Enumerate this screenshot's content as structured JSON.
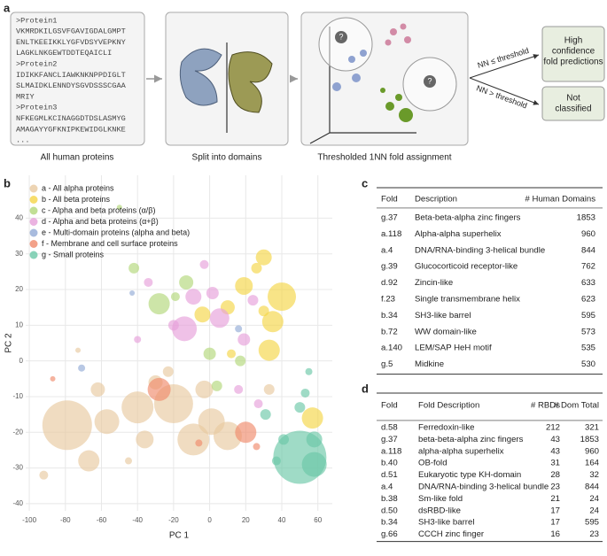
{
  "panel_labels": [
    "a",
    "b",
    "c",
    "d"
  ],
  "panel_a": {
    "sequences": [
      ">Protein1",
      "VKMRDKILGSVFGAVIGDALGMPT",
      "ENLTKEEIKKLYGFVDSYVEPKNY",
      "LAGKLNKGEWTDDTEQAICLI",
      ">Protein2",
      "IDIKKFANCLIAWKNKNPPDIGLT",
      "SLMAIDKLENNDYSGVDSSSCGAA",
      "MRIY",
      ">Protein3",
      "NFKEGMLKCINAGGDTDSLASMYG",
      "AMAGAYYGFKNIPKEWIDGLKNKE",
      "..."
    ],
    "step_labels": [
      "All human proteins",
      "Split into domains",
      "Thresholded 1NN fold assignment"
    ],
    "query_marks": [
      "?",
      "?"
    ],
    "branch_labels": [
      "NN ≤ threshold",
      "NN > threshold"
    ],
    "outcomes": [
      [
        "High",
        "confidence",
        "fold predictions"
      ],
      [
        "Not",
        "classified"
      ]
    ]
  },
  "chart_data": {
    "type": "bubble",
    "xlabel": "PC 1",
    "ylabel": "PC 2",
    "xlim": [
      -102,
      68
    ],
    "ylim": [
      -42,
      52
    ],
    "xticks": [
      -100,
      -80,
      -60,
      -40,
      -20,
      0,
      20,
      40,
      60
    ],
    "yticks": [
      -40,
      -30,
      -20,
      -10,
      0,
      10,
      20,
      30,
      40
    ],
    "grid": true,
    "legend": "upper left",
    "series": [
      {
        "name": "a - All alpha proteins",
        "color": "#e8c9a0",
        "x": [
          -79,
          -40,
          -20,
          -9,
          1,
          10,
          -57,
          -36,
          -67,
          -92,
          -62,
          -30,
          -3,
          33,
          -23,
          -73,
          -45
        ],
        "values": [
          -18,
          -13,
          -12,
          -22,
          -17,
          -21,
          -17,
          -22,
          -28,
          -32,
          -8,
          -6,
          -8,
          -8,
          -3,
          3,
          -28
        ],
        "sizes": [
          784,
          324,
          484,
          324,
          225,
          256,
          196,
          100,
          144,
          25,
          64,
          64,
          100,
          36,
          36,
          9,
          16
        ]
      },
      {
        "name": "b - All beta proteins",
        "color": "#f5d547",
        "x": [
          30,
          40,
          35,
          33,
          19,
          10,
          -4,
          57,
          30,
          12,
          26
        ],
        "values": [
          29,
          18,
          11,
          3,
          21,
          15,
          13,
          -16,
          14,
          2,
          26
        ],
        "sizes": [
          81,
          256,
          144,
          144,
          100,
          64,
          81,
          144,
          36,
          25,
          36
        ]
      },
      {
        "name": "c - Alpha and beta proteins (α/β)",
        "color": "#b2d77a",
        "x": [
          -28,
          -13,
          -42,
          0,
          17,
          4,
          -19,
          -50
        ],
        "values": [
          16,
          22,
          26,
          2,
          0,
          -7,
          18,
          43
        ],
        "sizes": [
          144,
          64,
          36,
          49,
          36,
          36,
          25,
          9
        ]
      },
      {
        "name": "d - Alpha and beta proteins (α+β)",
        "color": "#e6a0da",
        "x": [
          -14,
          5.5,
          -9,
          1.6,
          19,
          -20,
          -34,
          24,
          16,
          -3,
          -40,
          27
        ],
        "values": [
          9,
          12,
          18,
          19,
          6,
          10,
          22,
          17,
          -8,
          27,
          6,
          -12
        ],
        "sizes": [
          196,
          121,
          81,
          49,
          49,
          36,
          25,
          36,
          25,
          25,
          16,
          25
        ]
      },
      {
        "name": "e - Multi-domain proteins (alpha and beta)",
        "color": "#92aad6",
        "x": [
          -71,
          16,
          -43
        ],
        "values": [
          -2,
          9,
          19
        ],
        "sizes": [
          16,
          16,
          9
        ]
      },
      {
        "name": "f - Membrane and cell surface proteins",
        "color": "#f08a6c",
        "x": [
          -28,
          20,
          -87,
          -6,
          26
        ],
        "values": [
          -8,
          -20,
          -5,
          -23,
          -24
        ],
        "sizes": [
          169,
          144,
          9,
          16,
          16
        ]
      },
      {
        "name": "g - Small proteins",
        "color": "#6cc8a8",
        "x": [
          50,
          58,
          58,
          50,
          31,
          53,
          41,
          37,
          55
        ],
        "values": [
          -27,
          -29,
          -22,
          -13,
          -15,
          -9,
          -22,
          -28,
          -3
        ],
        "sizes": [
          900,
          196,
          81,
          36,
          36,
          25,
          36,
          25,
          16
        ]
      }
    ]
  },
  "table_c": {
    "header": [
      "Fold",
      "Description",
      "# Human Domains"
    ],
    "rows": [
      [
        "g.37",
        "Beta-beta-alpha zinc fingers",
        1853
      ],
      [
        "a.118",
        "Alpha-alpha superhelix",
        960
      ],
      [
        "a.4",
        "DNA/RNA-binding 3-helical bundle",
        844
      ],
      [
        "g.39",
        "Glucocorticoid receptor-like",
        762
      ],
      [
        "d.92",
        "Zincin-like",
        633
      ],
      [
        "f.23",
        "Single transmembrane helix",
        623
      ],
      [
        "b.34",
        "SH3-like barrel",
        595
      ],
      [
        "b.72",
        "WW domain-like",
        573
      ],
      [
        "a.140",
        "LEM/SAP HeH motif",
        535
      ],
      [
        "g.5",
        "Midkine",
        530
      ]
    ]
  },
  "table_d": {
    "header": [
      "Fold",
      "Fold Description",
      "# RBDs",
      "# Dom Total"
    ],
    "rows": [
      [
        "d.58",
        "Ferredoxin-like",
        212,
        321
      ],
      [
        "g.37",
        "beta-beta-alpha zinc fingers",
        43,
        1853
      ],
      [
        "a.118",
        "alpha-alpha superhelix",
        43,
        960
      ],
      [
        "b.40",
        "OB-fold",
        31,
        164
      ],
      [
        "d.51",
        "Eukaryotic type KH-domain",
        28,
        32
      ],
      [
        "a.4",
        "DNA/RNA-binding 3-helical bundle",
        23,
        844
      ],
      [
        "b.38",
        "Sm-like fold",
        21,
        24
      ],
      [
        "d.50",
        "dsRBD-like",
        17,
        24
      ],
      [
        "b.34",
        "SH3-like barrel",
        17,
        595
      ],
      [
        "g.66",
        "CCCH zinc finger",
        16,
        23
      ]
    ]
  }
}
